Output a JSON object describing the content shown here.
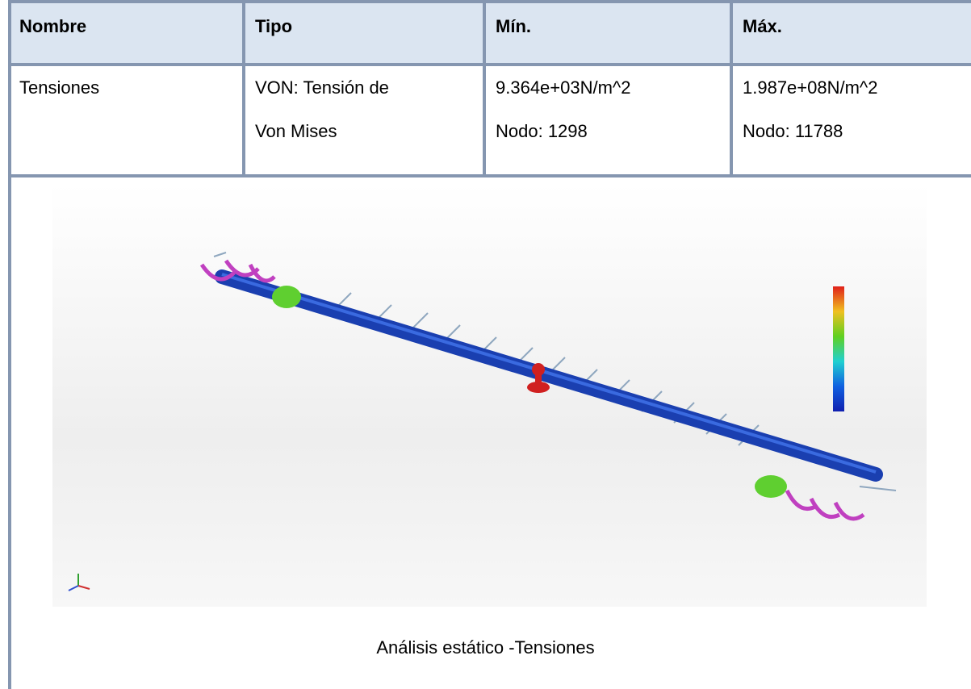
{
  "table": {
    "header": [
      "Nombre",
      "Tipo",
      "Mín.",
      "Máx."
    ],
    "rows": [
      [
        [
          "Tensiones"
        ],
        [
          "VON: Tensión de",
          "Von Mises"
        ],
        [
          "9.364e+03N/m^2",
          "Nodo: 1298"
        ],
        [
          "1.987e+08N/m^2",
          "Nodo: 11788"
        ]
      ]
    ]
  },
  "caption": "Análisis estático -Tensiones"
}
